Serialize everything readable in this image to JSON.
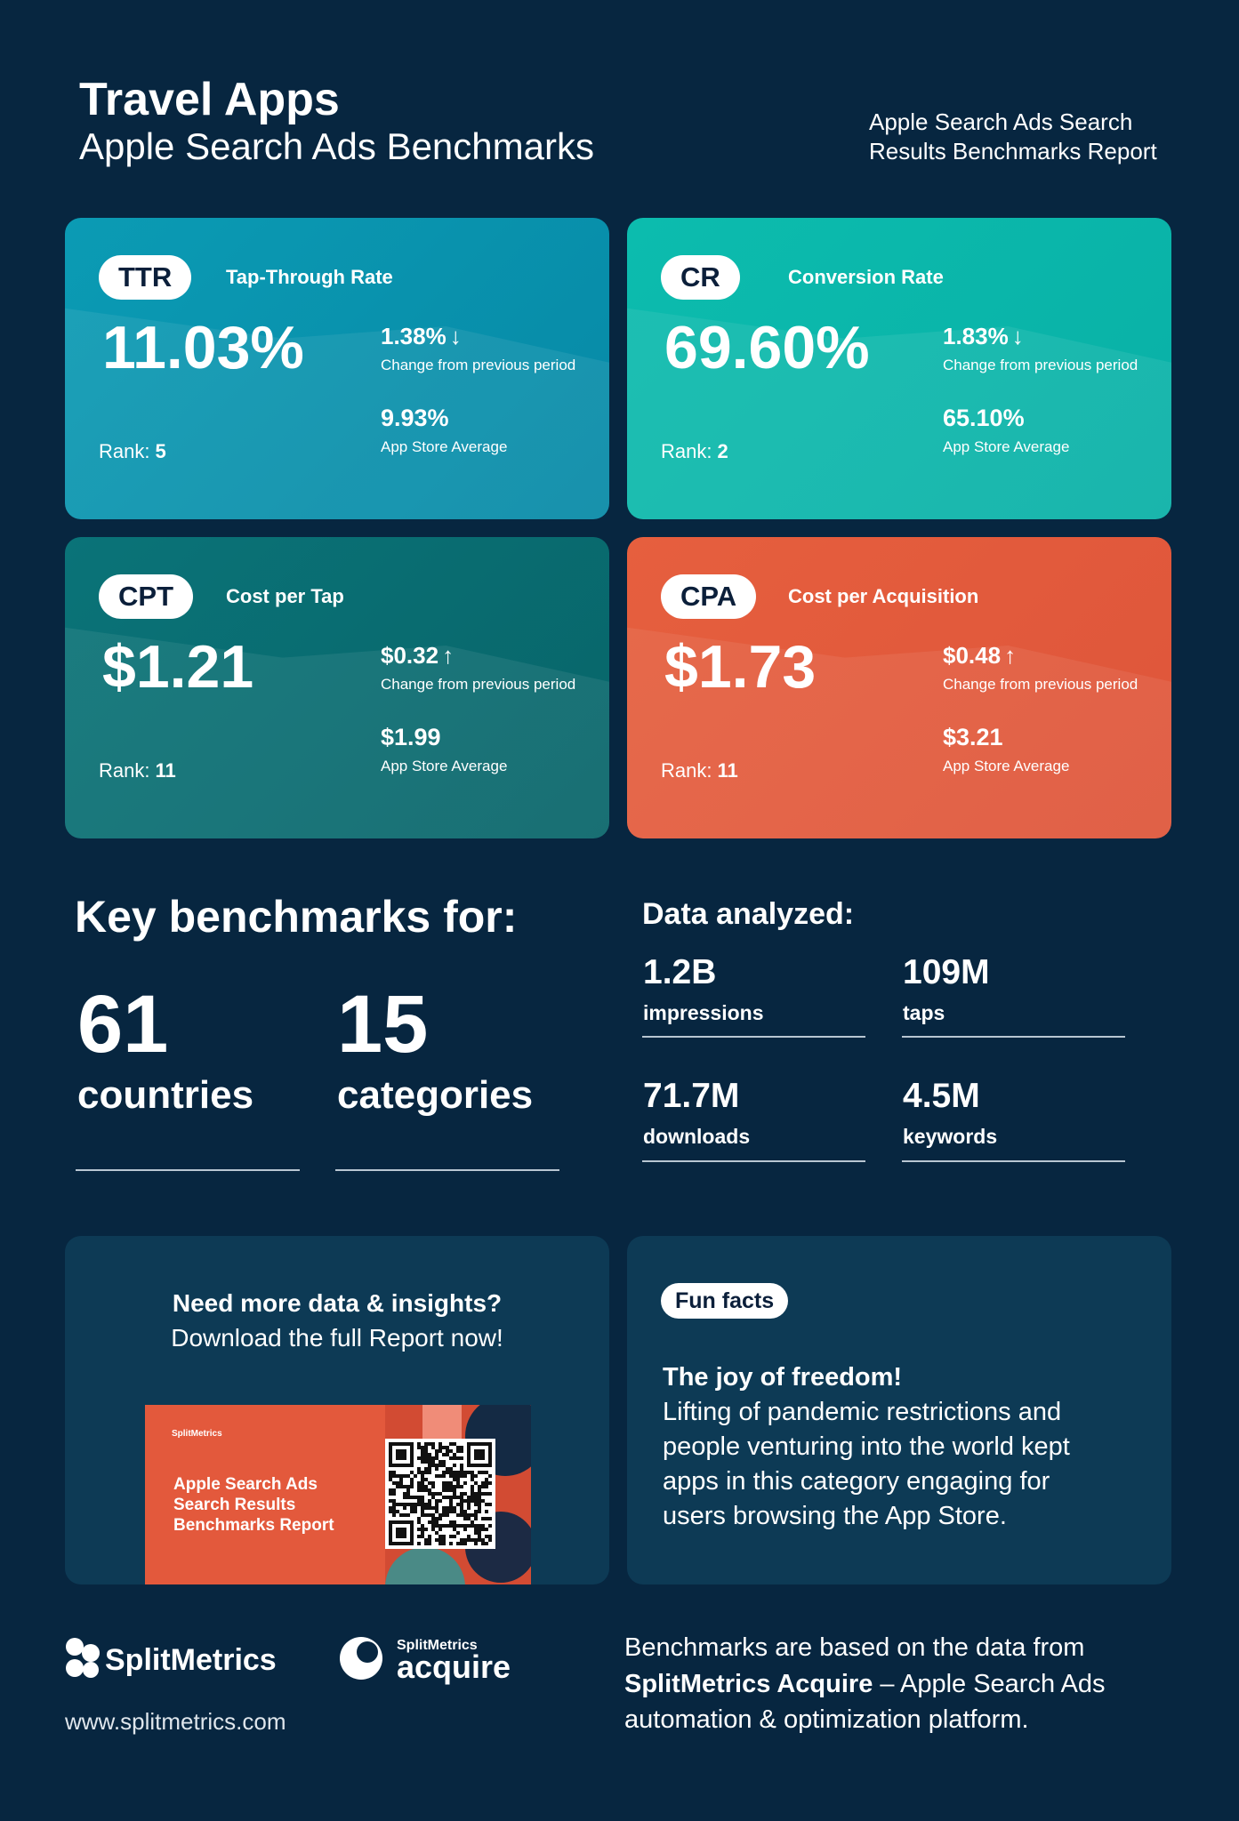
{
  "header": {
    "title": "Travel Apps",
    "subtitle": "Apple Search Ads Benchmarks",
    "report_name": [
      "Apple Search Ads Search",
      "Results Benchmarks Report"
    ]
  },
  "metrics": [
    {
      "abbr": "TTR",
      "name": "Tap-Through Rate",
      "value": "11.03%",
      "change": "1.38%",
      "arrow": "↓",
      "change_label": "Change from previous period",
      "average": "9.93%",
      "average_label": "App Store Average",
      "rank_label": "Rank:",
      "rank": "5"
    },
    {
      "abbr": "CR",
      "name": "Conversion Rate",
      "value": "69.60%",
      "change": "1.83%",
      "arrow": "↓",
      "change_label": "Change from previous period",
      "average": "65.10%",
      "average_label": "App Store Average",
      "rank_label": "Rank:",
      "rank": "2"
    },
    {
      "abbr": "CPT",
      "name": "Cost per Tap",
      "value": "$1.21",
      "change": "$0.32",
      "arrow": "↑",
      "change_label": "Change from previous period",
      "average": "$1.99",
      "average_label": "App Store Average",
      "rank_label": "Rank:",
      "rank": "11"
    },
    {
      "abbr": "CPA",
      "name": "Cost per Acquisition",
      "value": "$1.73",
      "change": "$0.48",
      "arrow": "↑",
      "change_label": "Change from previous period",
      "average": "$3.21",
      "average_label": "App Store Average",
      "rank_label": "Rank:",
      "rank": "11"
    }
  ],
  "key_benchmarks": {
    "heading": "Key benchmarks for:",
    "items": [
      {
        "value": "61",
        "label": "countries"
      },
      {
        "value": "15",
        "label": "categories"
      }
    ]
  },
  "data_analyzed": {
    "heading": "Data analyzed:",
    "items": [
      {
        "value": "1.2B",
        "label": "impressions"
      },
      {
        "value": "109M",
        "label": "taps"
      },
      {
        "value": "71.7M",
        "label": "downloads"
      },
      {
        "value": "4.5M",
        "label": "keywords"
      }
    ]
  },
  "cta": {
    "heading": "Need more data & insights?",
    "text": "Download the full Report now!",
    "cover_brand": "SplitMetrics",
    "cover_title": [
      "Apple Search Ads",
      "Search Results",
      "Benchmarks Report"
    ]
  },
  "fun_facts": {
    "badge": "Fun facts",
    "heading": "The joy of freedom!",
    "lines": [
      "Lifting of pandemic restrictions and",
      "people venturing into the world kept",
      "apps in this category engaging for",
      "users browsing the App Store."
    ]
  },
  "footer": {
    "logo": "SplitMetrics",
    "acquire_brand": "SplitMetrics",
    "acquire": "acquire",
    "url": "www.splitmetrics.com",
    "note_line1": "Benchmarks are based on the data from",
    "note_bold": "SplitMetrics Acquire",
    "note_line2": " – Apple Search Ads",
    "note_line3": "automation & optimization platform."
  }
}
